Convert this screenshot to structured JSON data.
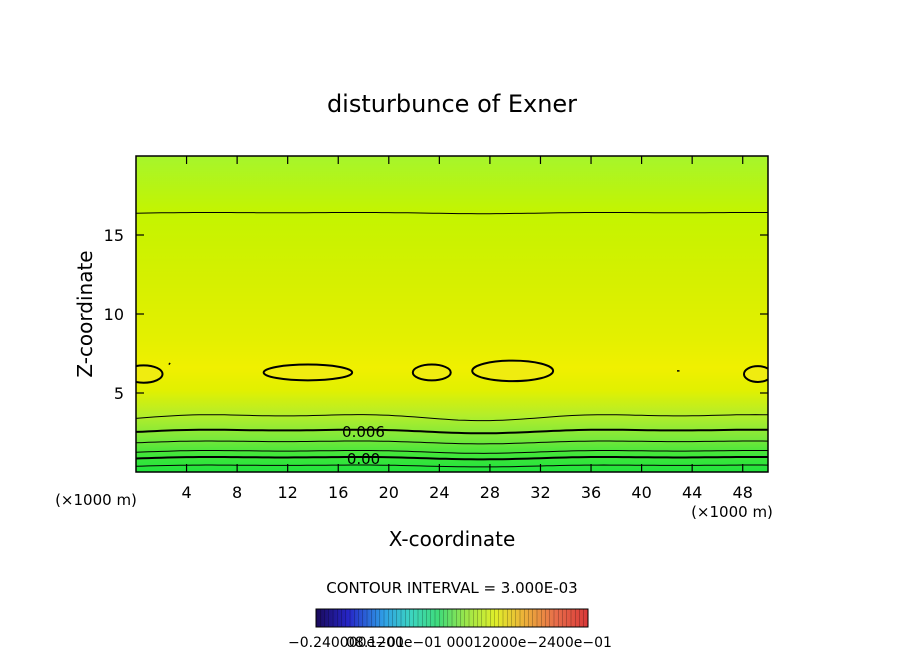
{
  "chart_data": {
    "type": "heatmap",
    "title": "disturbunce of Exner",
    "xlabel": "X-coordinate",
    "ylabel": "Z-coordinate",
    "x_unit_left": "(×1000 m)",
    "x_unit_right": "(×1000 m)",
    "xlim": [
      0,
      50
    ],
    "ylim": [
      0,
      20
    ],
    "xticks": [
      4,
      8,
      12,
      16,
      20,
      24,
      28,
      32,
      36,
      40,
      44,
      48
    ],
    "yticks": [
      5,
      10,
      15
    ],
    "contour_interval_text": "CONTOUR INTERVAL = 3.000E-03",
    "contour_labels": [
      {
        "text": "0.006",
        "x": 18.0,
        "z": 2.6
      },
      {
        "text": "0.00",
        "x": 18.0,
        "z": 0.9
      }
    ],
    "colorbar_labels": "−0.240000e−01",
    "colorbar_labels_overlap": "08.1200e−01  00012000e−2400e−01",
    "colormap": [
      "#1a0a5a",
      "#2626c8",
      "#2fa0e6",
      "#3cd5c0",
      "#3fdb7a",
      "#72e64a",
      "#b8ee3c",
      "#e8ef2a",
      "#ecb438",
      "#e86e4a",
      "#d93838"
    ],
    "field_colors": {
      "bottom": "#21e63c",
      "low": "#7ae33a",
      "mid": "#cdf000",
      "peak": "#eef000",
      "upper": "#c8f500",
      "top": "#a8f52a"
    }
  }
}
